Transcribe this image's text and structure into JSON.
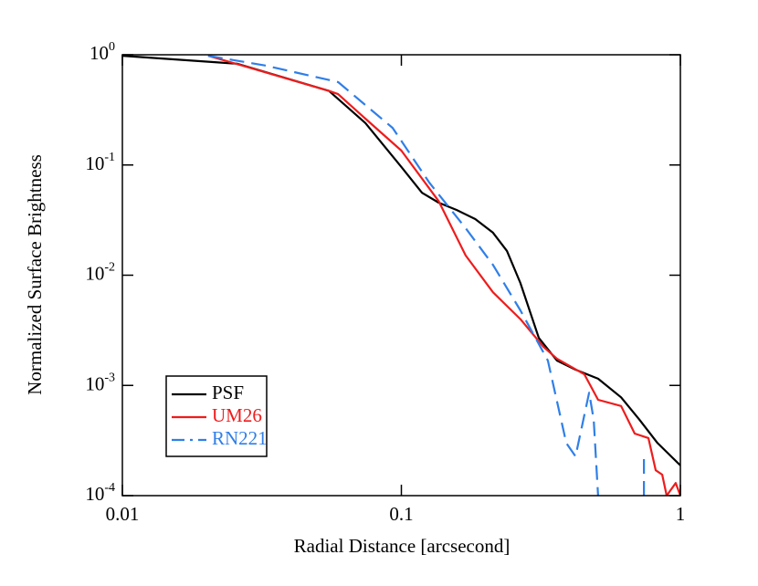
{
  "chart_data": {
    "type": "line",
    "xlabel": "Radial Distance [arcsecond]",
    "ylabel": "Normalized Surface Brightness",
    "xscale": "log",
    "yscale": "log",
    "xlim": [
      0.01,
      1
    ],
    "xticks": [
      0.01,
      0.1,
      1
    ],
    "ylim": [
      0.0001,
      1
    ],
    "yticks": [
      {
        "value": 0.0001,
        "label": "10^-4"
      },
      {
        "value": 0.001,
        "label": "10^-3"
      },
      {
        "value": 0.01,
        "label": "10^-2"
      },
      {
        "value": 0.1,
        "label": "10^-1"
      },
      {
        "value": 1,
        "label": "10^0"
      }
    ],
    "legend": "lower left",
    "series": [
      {
        "name": "PSF",
        "color": "#000000",
        "linestyle": "solid",
        "x": [
          0.01,
          0.0258,
          0.055,
          0.0743,
          0.1,
          0.1186,
          0.136,
          0.158,
          0.184,
          0.213,
          0.239,
          0.267,
          0.311,
          0.361,
          0.421,
          0.507,
          0.613,
          0.713,
          0.828,
          1.0
        ],
        "values": [
          0.98,
          0.83,
          0.47,
          0.24,
          0.096,
          0.056,
          0.0455,
          0.039,
          0.0323,
          0.0243,
          0.0166,
          0.0085,
          0.0027,
          0.00168,
          0.00139,
          0.00115,
          0.00078,
          0.00049,
          0.0003,
          0.000188
        ]
      },
      {
        "name": "UM26",
        "color": "#ee1c1c",
        "linestyle": "solid",
        "x": [
          0.0203,
          0.0268,
          0.055,
          0.0593,
          0.0743,
          0.1,
          0.136,
          0.17,
          0.213,
          0.267,
          0.323,
          0.361,
          0.453,
          0.507,
          0.613,
          0.686,
          0.768,
          0.816,
          0.861,
          0.893,
          0.962,
          1.0
        ],
        "values": [
          0.98,
          0.8,
          0.47,
          0.44,
          0.263,
          0.135,
          0.047,
          0.0151,
          0.007,
          0.004,
          0.00224,
          0.00175,
          0.00126,
          0.00074,
          0.00065,
          0.000366,
          0.000333,
          0.00017,
          0.000155,
          0.0001,
          0.00013,
          0.0001
        ]
      },
      {
        "name": "RN221",
        "color": "#2f7fe8",
        "linestyle": "dashed",
        "x": [
          0.0203,
          0.0324,
          0.0593,
          0.0743,
          0.093,
          0.126,
          0.17,
          0.213,
          0.267,
          0.335,
          0.39,
          0.421,
          0.471,
          0.489,
          0.507,
          null,
          0.74,
          0.74
        ],
        "values": [
          0.98,
          0.8,
          0.565,
          0.35,
          0.217,
          0.069,
          0.0267,
          0.0124,
          0.0048,
          0.00168,
          0.0003,
          0.000227,
          0.00086,
          0.00049,
          0.0001,
          null,
          0.0001,
          0.00023
        ]
      }
    ]
  }
}
